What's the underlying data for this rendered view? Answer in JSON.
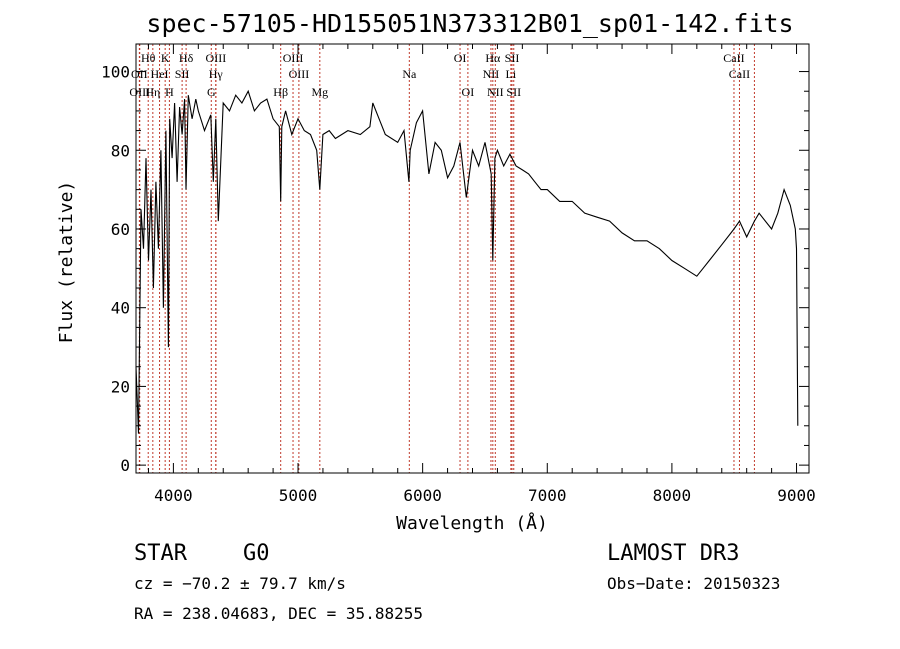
{
  "chart_data": {
    "type": "line",
    "title": "spec-57105-HD155051N373312B01_sp01-142.fits",
    "xlabel": "Wavelength (Å)",
    "ylabel": "Flux (relative)",
    "xlim": [
      3700,
      9100
    ],
    "ylim": [
      -2,
      107
    ],
    "xticks": [
      4000,
      5000,
      6000,
      7000,
      8000,
      9000
    ],
    "yticks": [
      0,
      20,
      40,
      60,
      80,
      100
    ],
    "series": [
      {
        "name": "flux",
        "x": [
          3700,
          3720,
          3740,
          3760,
          3780,
          3800,
          3820,
          3840,
          3860,
          3880,
          3900,
          3920,
          3940,
          3960,
          3970,
          3990,
          4010,
          4030,
          4050,
          4070,
          4090,
          4101,
          4120,
          4150,
          4180,
          4200,
          4250,
          4300,
          4320,
          4340,
          4360,
          4400,
          4450,
          4500,
          4550,
          4600,
          4650,
          4700,
          4750,
          4800,
          4850,
          4861,
          4870,
          4900,
          4950,
          5000,
          5050,
          5100,
          5150,
          5175,
          5200,
          5250,
          5300,
          5400,
          5500,
          5577,
          5600,
          5700,
          5800,
          5850,
          5890,
          5900,
          5950,
          6000,
          6050,
          6100,
          6150,
          6200,
          6250,
          6300,
          6350,
          6400,
          6450,
          6500,
          6550,
          6563,
          6580,
          6600,
          6650,
          6700,
          6750,
          6800,
          6850,
          6900,
          6950,
          7000,
          7100,
          7200,
          7300,
          7400,
          7500,
          7600,
          7700,
          7800,
          7900,
          8000,
          8100,
          8200,
          8250,
          8300,
          8400,
          8498,
          8542,
          8600,
          8662,
          8700,
          8800,
          8850,
          8900,
          8950,
          8990,
          9000,
          9010
        ],
        "values": [
          25,
          8,
          65,
          55,
          78,
          52,
          70,
          45,
          72,
          55,
          80,
          40,
          85,
          30,
          88,
          78,
          92,
          72,
          91,
          84,
          93,
          70,
          94,
          88,
          93,
          90,
          85,
          89,
          72,
          88,
          62,
          92,
          90,
          94,
          92,
          95,
          90,
          92,
          93,
          88,
          86,
          67,
          86,
          90,
          84,
          88,
          85,
          84,
          80,
          70,
          84,
          85,
          83,
          85,
          84,
          86,
          92,
          84,
          82,
          85,
          72,
          80,
          87,
          90,
          74,
          82,
          80,
          73,
          76,
          82,
          68,
          80,
          76,
          82,
          74,
          52,
          78,
          80,
          76,
          79,
          76,
          75,
          74,
          72,
          70,
          70,
          67,
          67,
          64,
          63,
          62,
          59,
          57,
          57,
          55,
          52,
          50,
          48,
          50,
          52,
          56,
          60,
          62,
          58,
          62,
          64,
          60,
          64,
          70,
          66,
          60,
          55,
          10
        ]
      }
    ],
    "annotations": [
      {
        "label": "Hθ",
        "x": 3798
      },
      {
        "label": "K",
        "x": 3934
      },
      {
        "label": "Hδ",
        "x": 4102
      },
      {
        "label": "OIII",
        "x": 4341
      },
      {
        "label": "OIII",
        "x": 4960
      },
      {
        "label": "OI",
        "x": 6300
      },
      {
        "label": "Hα",
        "x": 6563
      },
      {
        "label": "SII",
        "x": 6717
      },
      {
        "label": "CaII",
        "x": 8498
      },
      {
        "label": "OII",
        "x": 3727
      },
      {
        "label": "HeI",
        "x": 3889
      },
      {
        "label": "SII",
        "x": 4070
      },
      {
        "label": "Hγ",
        "x": 4340
      },
      {
        "label": "OIII",
        "x": 5007
      },
      {
        "label": "Na",
        "x": 5893
      },
      {
        "label": "NII",
        "x": 6548
      },
      {
        "label": "Li",
        "x": 6708
      },
      {
        "label": "CaII",
        "x": 8542
      },
      {
        "label": "OIII",
        "x": 3730
      },
      {
        "label": "Hη",
        "x": 3835
      },
      {
        "label": "H",
        "x": 3968
      },
      {
        "label": "G",
        "x": 4304
      },
      {
        "label": "Hβ",
        "x": 4861
      },
      {
        "label": "Mg",
        "x": 5175
      },
      {
        "label": "OI",
        "x": 6363
      },
      {
        "label": "NII",
        "x": 6583
      },
      {
        "label": "SII",
        "x": 6731
      },
      {
        "label": "CaII",
        "x": 8662
      }
    ]
  },
  "info": {
    "object_class": "STAR",
    "subclass": "G0",
    "survey": "LAMOST DR3",
    "redshift": "cz = −70.2 ± 79.7 km/s",
    "obs_date": "Obs−Date: 20150323",
    "coordinates": "RA = 238.04683, DEC =  35.88255"
  }
}
